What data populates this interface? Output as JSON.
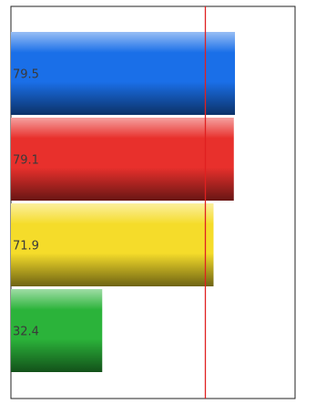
{
  "chart_data": {
    "type": "bar",
    "orientation": "horizontal",
    "categories": [
      "",
      "",
      "",
      ""
    ],
    "values": [
      79.5,
      79.1,
      71.9,
      32.4
    ],
    "value_labels": [
      "79.5",
      "79.1",
      "71.9",
      "32.4"
    ],
    "bar_colors": [
      "#1a6fe8",
      "#e8302c",
      "#f5dc2a",
      "#2bb33a"
    ],
    "reference_line": {
      "value": 69,
      "color": "#e02020"
    },
    "xlim": [
      0,
      100
    ],
    "title": "",
    "xlabel": "",
    "ylabel": "",
    "grid": false,
    "legend": "none"
  }
}
